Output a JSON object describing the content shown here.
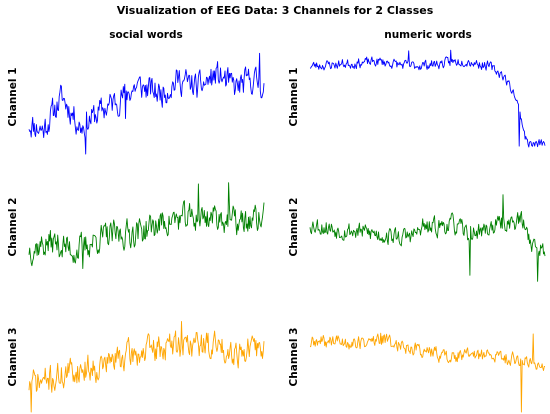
{
  "figure": {
    "title": "Visualization of EEG Data: 3 Channels for 2 Classes"
  },
  "chart_data": {
    "type": "line",
    "classes": [
      "social words",
      "numeric words"
    ],
    "channels": [
      "Channel 1",
      "Channel 2",
      "Channel 3"
    ],
    "colors": [
      "#0000ff",
      "#008000",
      "#ffa500"
    ],
    "axes_visible": false,
    "panels": [
      {
        "class": "social words",
        "channel": "Channel 1",
        "color": "#0000ff",
        "trend": [
          [
            0,
            0.28
          ],
          [
            0.06,
            0.22
          ],
          [
            0.14,
            0.52
          ],
          [
            0.22,
            0.25
          ],
          [
            0.3,
            0.38
          ],
          [
            0.38,
            0.5
          ],
          [
            0.46,
            0.62
          ],
          [
            0.56,
            0.55
          ],
          [
            0.64,
            0.68
          ],
          [
            0.72,
            0.6
          ],
          [
            0.8,
            0.72
          ],
          [
            0.88,
            0.6
          ],
          [
            0.95,
            0.68
          ],
          [
            1,
            0.62
          ]
        ],
        "noise": 0.19,
        "spikes": [
          [
            0.24,
            -0.48
          ],
          [
            0.41,
            -0.32
          ],
          [
            0.98,
            0.3
          ]
        ],
        "seed": 11
      },
      {
        "class": "numeric words",
        "channel": "Channel 1",
        "color": "#0000ff",
        "trend": [
          [
            0,
            0.8
          ],
          [
            0.15,
            0.82
          ],
          [
            0.3,
            0.84
          ],
          [
            0.42,
            0.8
          ],
          [
            0.55,
            0.82
          ],
          [
            0.66,
            0.85
          ],
          [
            0.76,
            0.8
          ],
          [
            0.82,
            0.72
          ],
          [
            0.87,
            0.55
          ],
          [
            0.9,
            0.32
          ],
          [
            0.92,
            0.12
          ],
          [
            0.95,
            0.08
          ],
          [
            1,
            0.1
          ]
        ],
        "noise": 0.07,
        "spikes": [
          [
            0.89,
            -0.3
          ],
          [
            0.6,
            0.1
          ],
          [
            0.42,
            0.12
          ]
        ],
        "seed": 23
      },
      {
        "class": "social words",
        "channel": "Channel 2",
        "color": "#008000",
        "trend": [
          [
            0,
            0.32
          ],
          [
            0.1,
            0.38
          ],
          [
            0.2,
            0.3
          ],
          [
            0.3,
            0.42
          ],
          [
            0.4,
            0.45
          ],
          [
            0.5,
            0.5
          ],
          [
            0.6,
            0.58
          ],
          [
            0.7,
            0.6
          ],
          [
            0.8,
            0.62
          ],
          [
            0.9,
            0.55
          ],
          [
            1,
            0.6
          ]
        ],
        "noise": 0.2,
        "spikes": [
          [
            0.23,
            -0.3
          ],
          [
            0.72,
            0.3
          ],
          [
            0.85,
            0.28
          ]
        ],
        "seed": 37
      },
      {
        "class": "numeric words",
        "channel": "Channel 2",
        "color": "#008000",
        "trend": [
          [
            0,
            0.55
          ],
          [
            0.1,
            0.5
          ],
          [
            0.2,
            0.48
          ],
          [
            0.3,
            0.45
          ],
          [
            0.4,
            0.42
          ],
          [
            0.5,
            0.5
          ],
          [
            0.6,
            0.55
          ],
          [
            0.68,
            0.45
          ],
          [
            0.75,
            0.5
          ],
          [
            0.82,
            0.55
          ],
          [
            0.9,
            0.58
          ],
          [
            0.95,
            0.35
          ],
          [
            1,
            0.3
          ]
        ],
        "noise": 0.13,
        "spikes": [
          [
            0.68,
            -0.38
          ],
          [
            0.82,
            0.3
          ],
          [
            0.97,
            -0.3
          ],
          [
            0.48,
            0.15
          ]
        ],
        "seed": 53
      },
      {
        "class": "social words",
        "channel": "Channel 3",
        "color": "#ffa500",
        "trend": [
          [
            0,
            0.25
          ],
          [
            0.1,
            0.3
          ],
          [
            0.2,
            0.38
          ],
          [
            0.3,
            0.42
          ],
          [
            0.4,
            0.5
          ],
          [
            0.5,
            0.55
          ],
          [
            0.6,
            0.6
          ],
          [
            0.7,
            0.62
          ],
          [
            0.8,
            0.6
          ],
          [
            0.9,
            0.55
          ],
          [
            1,
            0.58
          ]
        ],
        "noise": 0.2,
        "spikes": [
          [
            0.01,
            -0.3
          ],
          [
            0.65,
            0.3
          ]
        ],
        "seed": 71
      },
      {
        "class": "numeric words",
        "channel": "Channel 3",
        "color": "#ffa500",
        "trend": [
          [
            0,
            0.62
          ],
          [
            0.1,
            0.65
          ],
          [
            0.2,
            0.62
          ],
          [
            0.3,
            0.66
          ],
          [
            0.4,
            0.6
          ],
          [
            0.5,
            0.55
          ],
          [
            0.6,
            0.5
          ],
          [
            0.7,
            0.52
          ],
          [
            0.8,
            0.5
          ],
          [
            0.9,
            0.48
          ],
          [
            1,
            0.42
          ]
        ],
        "noise": 0.1,
        "spikes": [
          [
            0.9,
            -0.55
          ],
          [
            0.3,
            0.12
          ],
          [
            0.95,
            0.3
          ]
        ],
        "seed": 89
      }
    ]
  }
}
